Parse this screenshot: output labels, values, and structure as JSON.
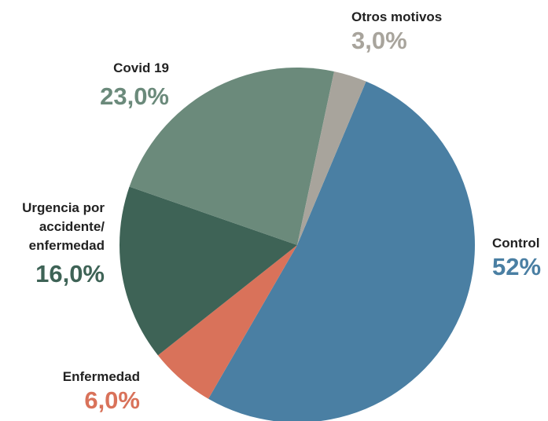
{
  "chart_data": {
    "type": "pie",
    "categories": [
      "Control",
      "Enfermedad",
      "Urgencia por accidente/ enfermedad",
      "Covid 19",
      "Otros motivos"
    ],
    "values": [
      52,
      6,
      16,
      23,
      3
    ],
    "value_labels": [
      "52%",
      "6,0%",
      "16,0%",
      "23,0%",
      "3,0%"
    ],
    "colors": [
      "#4a7fa3",
      "#d9725a",
      "#3e6356",
      "#6b8a7b",
      "#a8a49c"
    ]
  }
}
